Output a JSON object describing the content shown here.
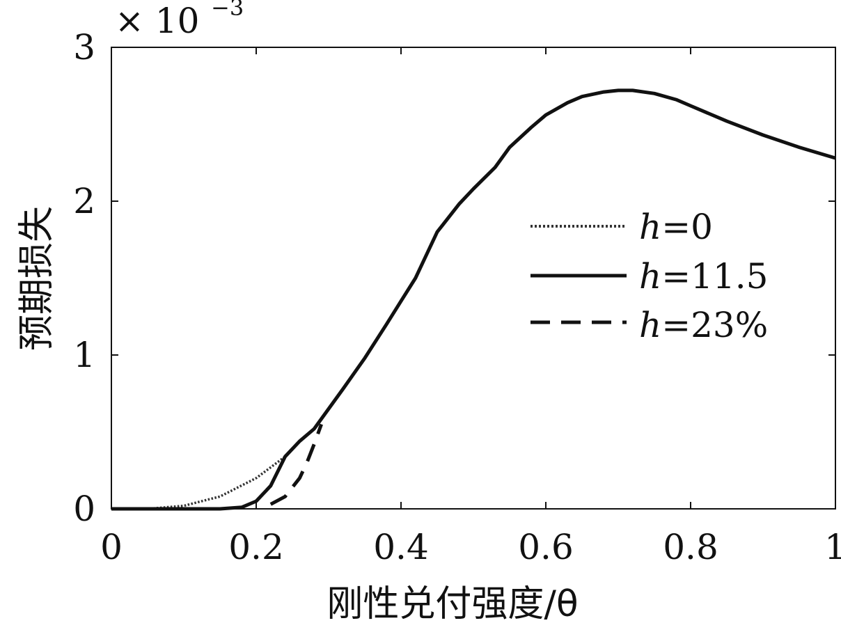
{
  "chart_data": {
    "type": "line",
    "xlabel": "刚性兑付强度/θ",
    "ylabel": "预期损失",
    "y_multiplier_text": "× 10",
    "y_multiplier_exp": "−3",
    "xlim": [
      0,
      1
    ],
    "ylim": [
      0,
      3
    ],
    "x_ticks": [
      "0",
      "0.2",
      "0.4",
      "0.6",
      "0.8",
      "1"
    ],
    "y_ticks": [
      "0",
      "1",
      "2",
      "3"
    ],
    "legend_position": "right-center",
    "series": [
      {
        "name_prefix": "h",
        "name_suffix": "=0",
        "style": "dotted",
        "x": [
          0,
          0.05,
          0.1,
          0.15,
          0.2,
          0.24
        ],
        "y": [
          0,
          0,
          0.02,
          0.08,
          0.2,
          0.34
        ]
      },
      {
        "name_prefix": "h",
        "name_suffix": "=11.5",
        "style": "solid",
        "x": [
          0,
          0.1,
          0.15,
          0.18,
          0.2,
          0.22,
          0.24,
          0.26,
          0.28,
          0.3,
          0.32,
          0.35,
          0.38,
          0.4,
          0.42,
          0.45,
          0.48,
          0.5,
          0.53,
          0.55,
          0.58,
          0.6,
          0.63,
          0.65,
          0.68,
          0.7,
          0.72,
          0.75,
          0.78,
          0.8,
          0.85,
          0.9,
          0.95,
          1.0
        ],
        "y": [
          0,
          0,
          0,
          0.01,
          0.05,
          0.15,
          0.34,
          0.44,
          0.52,
          0.65,
          0.78,
          0.98,
          1.2,
          1.35,
          1.5,
          1.8,
          1.98,
          2.08,
          2.22,
          2.35,
          2.48,
          2.56,
          2.64,
          2.68,
          2.71,
          2.72,
          2.72,
          2.7,
          2.66,
          2.62,
          2.52,
          2.43,
          2.35,
          2.28
        ]
      },
      {
        "name_prefix": "h",
        "name_suffix": "=23%",
        "style": "dashed",
        "x": [
          0.22,
          0.24,
          0.26,
          0.27,
          0.28,
          0.29
        ],
        "y": [
          0.03,
          0.08,
          0.2,
          0.3,
          0.42,
          0.55
        ]
      }
    ]
  }
}
